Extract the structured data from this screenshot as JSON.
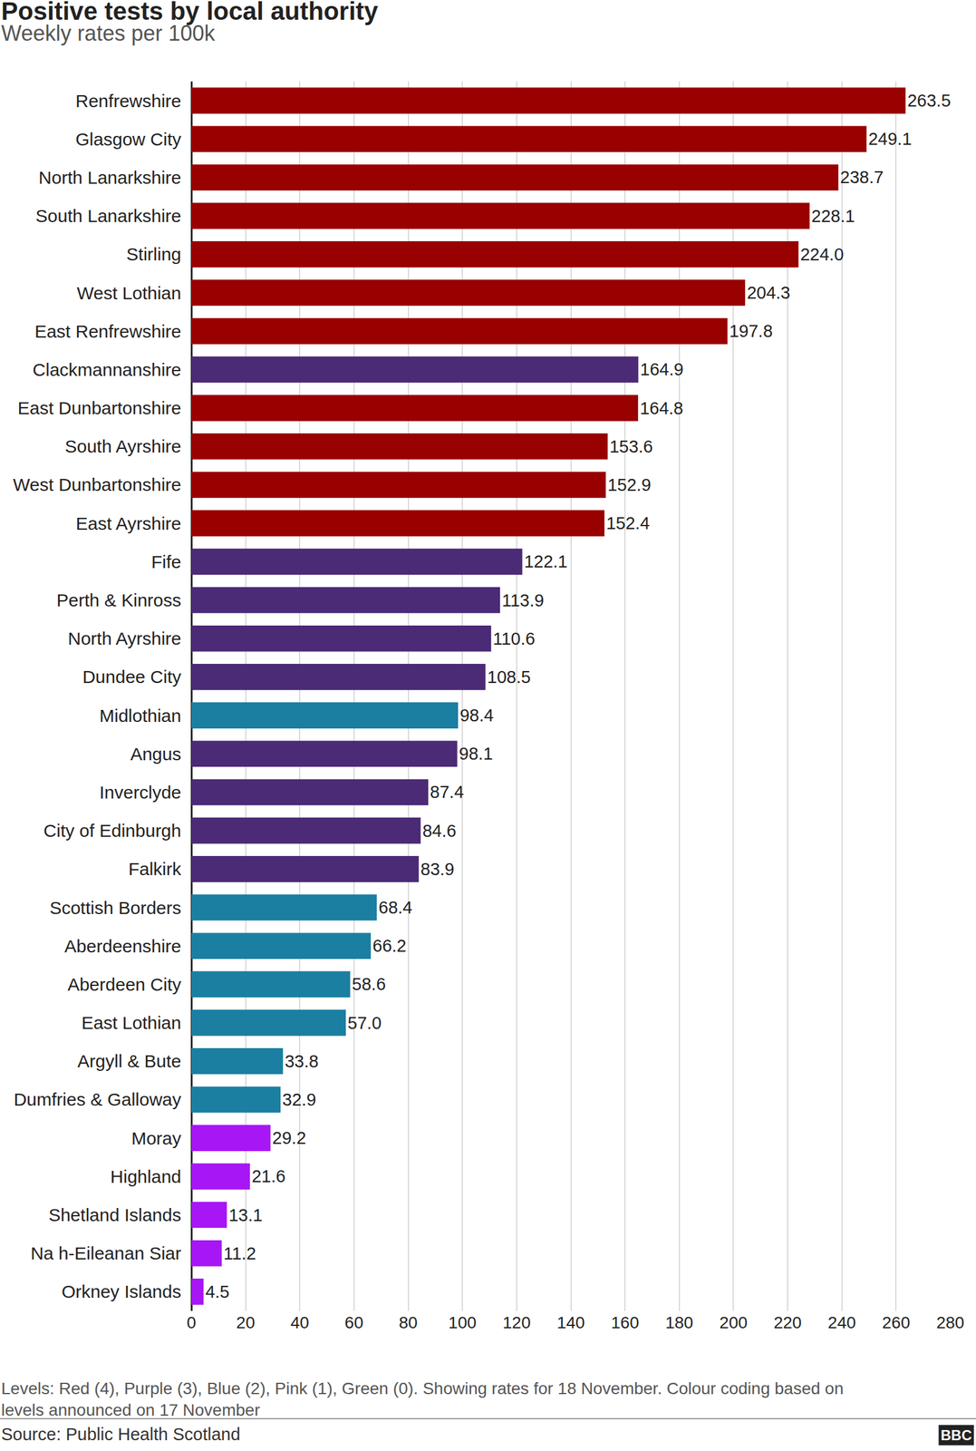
{
  "chart_data": {
    "type": "bar",
    "orientation": "horizontal",
    "title": "Positive tests by local authority",
    "subtitle": "Weekly rates per 100k",
    "note": [
      "Levels: Red (4), Purple (3), Blue (2), Pink (1), Green (0). Showing rates for 18 November. Colour coding based on",
      "levels announced on 17 November"
    ],
    "source": "Source: Public Health Scotland",
    "logo": "BBC",
    "categories": [
      "Renfrewshire",
      "Glasgow City",
      "North Lanarkshire",
      "South Lanarkshire",
      "Stirling",
      "West Lothian",
      "East Renfrewshire",
      "Clackmannanshire",
      "East Dunbartonshire",
      "South Ayrshire",
      "West Dunbartonshire",
      "East Ayrshire",
      "Fife",
      "Perth & Kinross",
      "North Ayrshire",
      "Dundee City",
      "Midlothian",
      "Angus",
      "Inverclyde",
      "City of Edinburgh",
      "Falkirk",
      "Scottish Borders",
      "Aberdeenshire",
      "Aberdeen City",
      "East Lothian",
      "Argyll & Bute",
      "Dumfries & Galloway",
      "Moray",
      "Highland",
      "Shetland Islands",
      "Na h-Eileanan Siar",
      "Orkney Islands"
    ],
    "values": [
      263.5,
      249.1,
      238.7,
      228.1,
      224.0,
      204.3,
      197.8,
      164.9,
      164.8,
      153.6,
      152.9,
      152.4,
      122.1,
      113.9,
      110.6,
      108.5,
      98.4,
      98.1,
      87.4,
      84.6,
      83.9,
      68.4,
      66.2,
      58.6,
      57.0,
      33.8,
      32.9,
      29.2,
      21.6,
      13.1,
      11.2,
      4.5
    ],
    "value_labels": [
      "263.5",
      "249.1",
      "238.7",
      "228.1",
      "224.0",
      "204.3",
      "197.8",
      "164.9",
      "164.8",
      "153.6",
      "152.9",
      "152.4",
      "122.1",
      "113.9",
      "110.6",
      "108.5",
      "98.4",
      "98.1",
      "87.4",
      "84.6",
      "83.9",
      "68.4",
      "66.2",
      "58.6",
      "57.0",
      "33.8",
      "32.9",
      "29.2",
      "21.6",
      "13.1",
      "11.2",
      "4.5"
    ],
    "colors": [
      "#990000",
      "#990000",
      "#990000",
      "#990000",
      "#990000",
      "#990000",
      "#990000",
      "#4b2a76",
      "#990000",
      "#990000",
      "#990000",
      "#990000",
      "#4b2a76",
      "#4b2a76",
      "#4b2a76",
      "#4b2a76",
      "#1a7fa1",
      "#4b2a76",
      "#4b2a76",
      "#4b2a76",
      "#4b2a76",
      "#1a7fa1",
      "#1a7fa1",
      "#1a7fa1",
      "#1a7fa1",
      "#1a7fa1",
      "#1a7fa1",
      "#a716f5",
      "#a716f5",
      "#a716f5",
      "#a716f5",
      "#a716f5"
    ],
    "xlim": [
      0,
      280
    ],
    "xticks": [
      0,
      20,
      40,
      60,
      80,
      100,
      120,
      140,
      160,
      180,
      200,
      220,
      240,
      260,
      280
    ],
    "grid": true,
    "data_labels": true
  }
}
